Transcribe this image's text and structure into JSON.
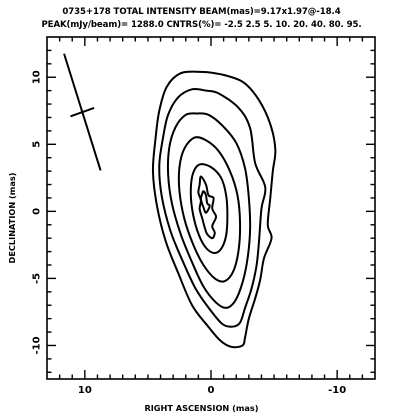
{
  "header": {
    "line1": "0735+178 TOTAL INTENSITY  BEAM(mas)=9.17x1.97@-18.4",
    "line2": "PEAK(mJy/beam)= 1288.0  CNTRS(%)= -2.5 2.5 5. 10. 20. 40. 80. 95."
  },
  "chart_data": {
    "type": "contour",
    "title": "0735+178 TOTAL INTENSITY",
    "xlabel": "RIGHT ASCENSION (mas)",
    "ylabel": "DECLINATION (mas)",
    "xlim": [
      13,
      -13
    ],
    "ylim": [
      -12.5,
      13
    ],
    "x_ticks": [
      10,
      0,
      -10
    ],
    "y_ticks": [
      10,
      5,
      0,
      -5,
      -10
    ],
    "beam": {
      "major_mas": 9.17,
      "minor_mas": 1.97,
      "pa_deg": -18.4
    },
    "beam_marker_center": [
      10.2,
      7.4
    ],
    "peak_mJy_per_beam": 1288.0,
    "contour_levels_percent": [
      -2.5,
      2.5,
      5,
      10,
      20,
      40,
      80,
      95
    ],
    "contours": [
      {
        "level": 2.5,
        "points": [
          [
            -0.3,
            10.3
          ],
          [
            -1.3,
            10.1
          ],
          [
            -2.6,
            9.6
          ],
          [
            -3.8,
            8.3
          ],
          [
            -4.7,
            6.5
          ],
          [
            -5.1,
            4.6
          ],
          [
            -4.9,
            3.0
          ],
          [
            -4.7,
            1.0
          ],
          [
            -4.5,
            -1.0
          ],
          [
            -4.8,
            -2.0
          ],
          [
            -4.2,
            -3.5
          ],
          [
            -3.9,
            -5.1
          ],
          [
            -3.5,
            -6.5
          ],
          [
            -3.0,
            -8.0
          ],
          [
            -2.7,
            -9.4
          ],
          [
            -2.5,
            -10.0
          ],
          [
            -1.6,
            -10.1
          ],
          [
            -0.7,
            -9.6
          ],
          [
            0.3,
            -8.5
          ],
          [
            1.5,
            -7.0
          ],
          [
            2.6,
            -4.6
          ],
          [
            3.6,
            -2.2
          ],
          [
            4.3,
            0.5
          ],
          [
            4.6,
            3.0
          ],
          [
            4.4,
            5.4
          ],
          [
            4.1,
            7.5
          ],
          [
            3.5,
            9.3
          ],
          [
            2.4,
            10.3
          ],
          [
            0.8,
            10.4
          ]
        ]
      },
      {
        "level": 5,
        "points": [
          [
            0.4,
            9.0
          ],
          [
            -0.6,
            8.8
          ],
          [
            -2.2,
            7.7
          ],
          [
            -3.1,
            6.2
          ],
          [
            -3.5,
            3.6
          ],
          [
            -4.3,
            1.8
          ],
          [
            -4.0,
            0.2
          ],
          [
            -3.8,
            -2.3
          ],
          [
            -3.6,
            -4.1
          ],
          [
            -3.2,
            -5.8
          ],
          [
            -2.7,
            -7.2
          ],
          [
            -2.3,
            -8.3
          ],
          [
            -1.7,
            -8.6
          ],
          [
            -0.9,
            -8.4
          ],
          [
            0.1,
            -7.3
          ],
          [
            1.2,
            -5.8
          ],
          [
            2.2,
            -3.8
          ],
          [
            3.2,
            -1.5
          ],
          [
            3.9,
            1.1
          ],
          [
            4.1,
            3.4
          ],
          [
            3.8,
            5.5
          ],
          [
            3.4,
            7.2
          ],
          [
            2.6,
            8.5
          ],
          [
            1.5,
            9.1
          ]
        ]
      },
      {
        "level": 10,
        "points": [
          [
            1.1,
            7.3
          ],
          [
            0.2,
            7.2
          ],
          [
            -0.9,
            6.4
          ],
          [
            -2.0,
            5.1
          ],
          [
            -2.7,
            3.2
          ],
          [
            -3.0,
            1.0
          ],
          [
            -3.1,
            -1.3
          ],
          [
            -2.9,
            -3.5
          ],
          [
            -2.5,
            -5.3
          ],
          [
            -1.9,
            -6.7
          ],
          [
            -1.2,
            -7.2
          ],
          [
            -0.4,
            -6.8
          ],
          [
            0.6,
            -5.6
          ],
          [
            1.5,
            -3.8
          ],
          [
            2.4,
            -1.7
          ],
          [
            3.1,
            0.6
          ],
          [
            3.4,
            2.8
          ],
          [
            3.3,
            4.8
          ],
          [
            2.8,
            6.3
          ],
          [
            2.0,
            7.2
          ]
        ]
      },
      {
        "level": 20,
        "points": [
          [
            1.3,
            5.5
          ],
          [
            0.4,
            5.3
          ],
          [
            -0.6,
            4.5
          ],
          [
            -1.5,
            3.0
          ],
          [
            -2.1,
            1.2
          ],
          [
            -2.3,
            -0.8
          ],
          [
            -2.2,
            -2.8
          ],
          [
            -1.8,
            -4.4
          ],
          [
            -1.1,
            -5.2
          ],
          [
            -0.3,
            -5.0
          ],
          [
            0.6,
            -4.0
          ],
          [
            1.4,
            -2.5
          ],
          [
            2.1,
            -0.6
          ],
          [
            2.5,
            1.5
          ],
          [
            2.5,
            3.3
          ],
          [
            2.1,
            4.7
          ]
        ]
      },
      {
        "level": 40,
        "points": [
          [
            0.9,
            3.5
          ],
          [
            0.0,
            3.3
          ],
          [
            -0.8,
            2.5
          ],
          [
            -1.2,
            1.2
          ],
          [
            -1.3,
            -0.3
          ],
          [
            -1.2,
            -1.8
          ],
          [
            -0.8,
            -2.8
          ],
          [
            -0.2,
            -3.1
          ],
          [
            0.5,
            -2.6
          ],
          [
            1.1,
            -1.4
          ],
          [
            1.5,
            0.2
          ],
          [
            1.6,
            1.7
          ],
          [
            1.4,
            2.9
          ]
        ]
      },
      {
        "level": 80,
        "points": [
          [
            0.8,
            2.6
          ],
          [
            0.4,
            2.0
          ],
          [
            0.2,
            1.2
          ],
          [
            -0.2,
            1.0
          ],
          [
            -0.1,
            0.2
          ],
          [
            -0.4,
            -0.4
          ],
          [
            -0.1,
            -1.1
          ],
          [
            -0.3,
            -1.6
          ],
          [
            -0.1,
            -2.0
          ],
          [
            0.3,
            -1.7
          ],
          [
            0.5,
            -1.2
          ],
          [
            0.7,
            -0.5
          ],
          [
            0.9,
            0.2
          ],
          [
            0.8,
            0.8
          ],
          [
            1.0,
            1.4
          ],
          [
            0.9,
            2.0
          ]
        ]
      },
      {
        "level": 95,
        "points": [
          [
            0.6,
            1.5
          ],
          [
            0.4,
            1.2
          ],
          [
            0.3,
            0.6
          ],
          [
            0.1,
            0.4
          ],
          [
            0.4,
            -0.1
          ],
          [
            0.6,
            0.3
          ],
          [
            0.8,
            0.9
          ],
          [
            0.7,
            1.3
          ]
        ]
      }
    ]
  }
}
